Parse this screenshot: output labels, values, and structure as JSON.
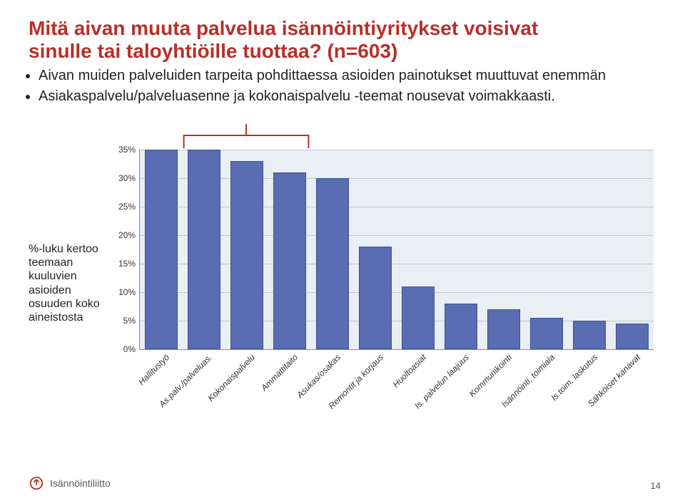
{
  "title_line1": "Mitä aivan muuta palvelua isännöintiyritykset voisivat",
  "title_line2": "sinulle tai taloyhtiöille tuottaa? (n=603)",
  "bullets": [
    "Aivan muiden palveluiden tarpeita pohdittaessa asioiden painotukset muuttuvat enemmän",
    "Asiakaspalvelu/palveluasenne ja kokonaispalvelu -teemat nousevat voimakkaasti."
  ],
  "side_caption": "%-luku kertoo teemaan kuuluvien asioiden osuuden koko aineistosta",
  "chart": {
    "type": "bar",
    "background_color": "#e9eff4",
    "grid_color": "#bcc7ce",
    "axis_color": "#888888",
    "bar_color": "#5a6db3",
    "bar_border_color": "#3e4f8c",
    "bar_width_ratio": 0.78,
    "tick_fontsize": 12,
    "label_font_style": "italic",
    "ylim": [
      0,
      35
    ],
    "ytick_step": 5,
    "yticks": [
      "0%",
      "5%",
      "10%",
      "15%",
      "20%",
      "25%",
      "30%",
      "35%"
    ],
    "categories": [
      "Hallitustyö",
      "As.palv./palveluas.",
      "Kokonaispalvelu",
      "Ammattitaito",
      "Asukas/osakas",
      "Remontit ja korjaus",
      "Huoltoasiat",
      "Is. palvelun laajuus",
      "Kommunikointi",
      "Isännöinti, toimiala",
      "Is.toim. laskutus",
      "Sähköiset kanavat"
    ],
    "values": [
      35,
      35,
      33,
      31,
      30,
      18,
      11,
      8,
      7,
      5.5,
      5,
      4.5
    ]
  },
  "bracket": {
    "color": "#b63028",
    "stroke_width": 2,
    "col_start": 1,
    "col_end": 3
  },
  "footer": {
    "brand": "Isännöintiliitto",
    "brand_color": "#595959",
    "logo_color": "#b63028"
  },
  "page_number": "14"
}
